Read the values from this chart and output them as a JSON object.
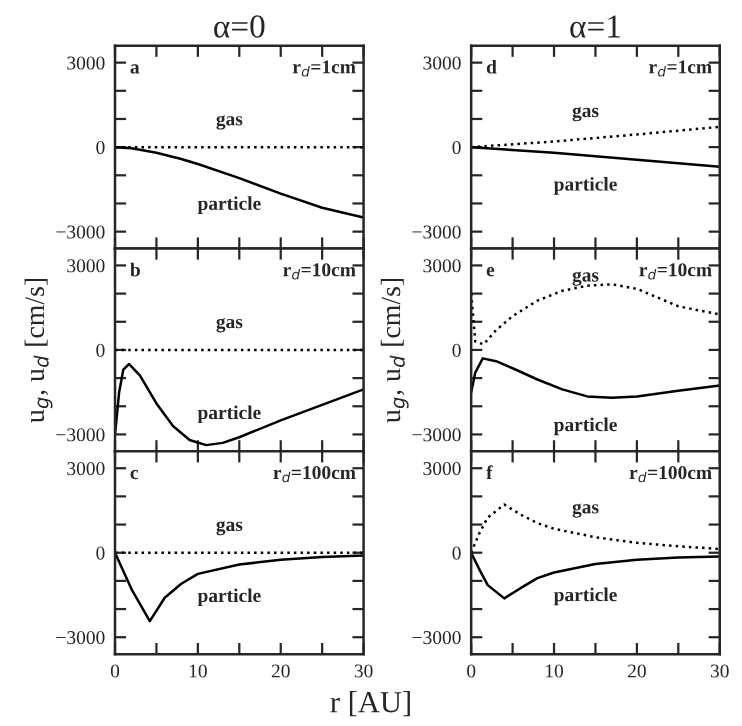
{
  "chart_data": [
    {
      "type": "line",
      "title": "α=0",
      "xlim": [
        0,
        30
      ],
      "ylim": [
        -3600,
        3600
      ],
      "tick_labels": "y",
      "xticks": [
        0,
        {
          "value": 5,
          "label": null
        },
        10,
        {
          "value": 15,
          "label": null
        },
        20,
        {
          "value": 25,
          "label": null
        },
        30
      ],
      "yticks": [
        {
          "value": -3000,
          "label": "−3000"
        },
        {
          "value": -2000,
          "label": null
        },
        {
          "value": -1000,
          "label": null
        },
        0,
        {
          "value": 1000,
          "label": null
        },
        {
          "value": 2000,
          "label": null
        },
        3000
      ],
      "annotations": [
        "a",
        "r$_{d}$=1cm",
        "gas",
        "particle"
      ],
      "series": [
        {
          "color": "#000000",
          "line_style": "dotted",
          "x": [
            0,
            30
          ],
          "values": [
            0,
            0
          ]
        },
        {
          "color": "#000000",
          "line_style": "solid",
          "x": [
            0,
            2,
            5,
            8,
            10,
            15,
            20,
            25,
            30
          ],
          "values": [
            0,
            -40,
            -200,
            -420,
            -600,
            -1100,
            -1650,
            -2150,
            -2500
          ]
        }
      ]
    },
    {
      "type": "line",
      "title": "α=1",
      "xlim": [
        0,
        30
      ],
      "ylim": [
        -3600,
        3600
      ],
      "tick_labels": "y",
      "xticks": [
        0,
        {
          "value": 5,
          "label": null
        },
        10,
        {
          "value": 15,
          "label": null
        },
        20,
        {
          "value": 25,
          "label": null
        },
        30
      ],
      "yticks": [
        {
          "value": -3000,
          "label": "−3000"
        },
        {
          "value": -2000,
          "label": null
        },
        {
          "value": -1000,
          "label": null
        },
        0,
        {
          "value": 1000,
          "label": null
        },
        {
          "value": 2000,
          "label": null
        },
        3000
      ],
      "annotations": [
        "d",
        "r$_{d}$=1cm",
        "gas",
        "particle"
      ],
      "series": [
        {
          "color": "#000000",
          "line_style": "dotted",
          "x": [
            0,
            10,
            20,
            30
          ],
          "values": [
            0,
            200,
            450,
            720
          ]
        },
        {
          "color": "#000000",
          "line_style": "solid",
          "x": [
            0,
            10,
            20,
            30
          ],
          "values": [
            0,
            -200,
            -450,
            -700
          ]
        }
      ]
    },
    {
      "type": "line",
      "ylabel": "u$_{g}$, u$_{d}$ [cm/s]",
      "xlim": [
        0,
        30
      ],
      "ylim": [
        -3600,
        3600
      ],
      "tick_labels": "y",
      "xticks": [
        0,
        {
          "value": 5,
          "label": null
        },
        10,
        {
          "value": 15,
          "label": null
        },
        20,
        {
          "value": 25,
          "label": null
        },
        30
      ],
      "yticks": [
        {
          "value": -3000,
          "label": "−3000"
        },
        {
          "value": -2000,
          "label": null
        },
        {
          "value": -1000,
          "label": null
        },
        0,
        {
          "value": 1000,
          "label": null
        },
        {
          "value": 2000,
          "label": null
        },
        3000
      ],
      "annotations": [
        "b",
        "r$_{d}$=10cm",
        "gas",
        "particle"
      ],
      "series": [
        {
          "color": "#000000",
          "line_style": "dotted",
          "x": [
            0,
            30
          ],
          "values": [
            0,
            0
          ]
        },
        {
          "color": "#000000",
          "line_style": "solid",
          "x": [
            0,
            0.5,
            1,
            1.7,
            3,
            5,
            7,
            9,
            11,
            13,
            15,
            20,
            25,
            30
          ],
          "values": [
            -3000,
            -1500,
            -700,
            -500,
            -900,
            -1900,
            -2700,
            -3200,
            -3380,
            -3300,
            -3100,
            -2500,
            -1950,
            -1400
          ]
        }
      ]
    },
    {
      "type": "line",
      "ylabel": "u$_{g}$, u$_{d}$ [cm/s]",
      "xlim": [
        0,
        30
      ],
      "ylim": [
        -3600,
        3600
      ],
      "tick_labels": "y",
      "xticks": [
        0,
        {
          "value": 5,
          "label": null
        },
        10,
        {
          "value": 15,
          "label": null
        },
        20,
        {
          "value": 25,
          "label": null
        },
        30
      ],
      "yticks": [
        {
          "value": -3000,
          "label": "−3000"
        },
        {
          "value": -2000,
          "label": null
        },
        {
          "value": -1000,
          "label": null
        },
        0,
        {
          "value": 1000,
          "label": null
        },
        {
          "value": 2000,
          "label": null
        },
        3000
      ],
      "annotations": [
        "e",
        "r$_{d}$=10cm",
        "gas",
        "particle"
      ],
      "series": [
        {
          "color": "#000000",
          "line_style": "dotted",
          "x": [
            0,
            0.5,
            1.5,
            3,
            5,
            8,
            11,
            14,
            17,
            20,
            25,
            30
          ],
          "values": [
            2000,
            300,
            200,
            700,
            1200,
            1750,
            2100,
            2280,
            2330,
            2170,
            1550,
            1260
          ]
        },
        {
          "color": "#000000",
          "line_style": "solid",
          "x": [
            0,
            0.5,
            1.4,
            3,
            5,
            8,
            11,
            14,
            17,
            20,
            25,
            30
          ],
          "values": [
            -1500,
            -800,
            -300,
            -400,
            -650,
            -1050,
            -1400,
            -1650,
            -1700,
            -1650,
            -1450,
            -1260
          ]
        }
      ]
    },
    {
      "type": "line",
      "xlabel": "r [AU]",
      "xlim": [
        0,
        30
      ],
      "ylim": [
        -3600,
        3600
      ],
      "xticks": [
        0,
        {
          "value": 5,
          "label": null
        },
        10,
        {
          "value": 15,
          "label": null
        },
        20,
        {
          "value": 25,
          "label": null
        },
        30
      ],
      "yticks": [
        {
          "value": -3000,
          "label": "−3000"
        },
        {
          "value": -2000,
          "label": null
        },
        {
          "value": -1000,
          "label": null
        },
        0,
        {
          "value": 1000,
          "label": null
        },
        {
          "value": 2000,
          "label": null
        },
        3000
      ],
      "annotations": [
        "c",
        "r$_{d}$=100cm",
        "gas",
        "particle"
      ],
      "series": [
        {
          "color": "#000000",
          "line_style": "dotted",
          "x": [
            0,
            30
          ],
          "values": [
            0,
            0
          ]
        },
        {
          "color": "#000000",
          "line_style": "solid",
          "x": [
            0,
            2,
            4.2,
            6,
            8,
            10,
            15,
            20,
            25,
            30
          ],
          "values": [
            0,
            -1300,
            -2430,
            -1600,
            -1100,
            -750,
            -420,
            -250,
            -150,
            -100
          ]
        }
      ]
    },
    {
      "type": "line",
      "xlim": [
        0,
        30
      ],
      "ylim": [
        -3600,
        3600
      ],
      "xticks": [
        0,
        {
          "value": 5,
          "label": null
        },
        10,
        {
          "value": 15,
          "label": null
        },
        20,
        {
          "value": 25,
          "label": null
        },
        30
      ],
      "yticks": [
        {
          "value": -3000,
          "label": "−3000"
        },
        {
          "value": -2000,
          "label": null
        },
        {
          "value": -1000,
          "label": null
        },
        0,
        {
          "value": 1000,
          "label": null
        },
        {
          "value": 2000,
          "label": null
        },
        3000
      ],
      "annotations": [
        "f",
        "r$_{d}$=100cm",
        "gas",
        "particle"
      ],
      "series": [
        {
          "color": "#000000",
          "line_style": "dotted",
          "x": [
            0,
            1,
            2,
            4,
            6,
            8,
            10,
            15,
            20,
            25,
            30
          ],
          "values": [
            0,
            700,
            1250,
            1710,
            1350,
            1050,
            850,
            550,
            350,
            230,
            130
          ]
        },
        {
          "color": "#000000",
          "line_style": "solid",
          "x": [
            0,
            1,
            2,
            4,
            6,
            8,
            10,
            15,
            20,
            25,
            30
          ],
          "values": [
            0,
            -600,
            -1150,
            -1620,
            -1250,
            -900,
            -700,
            -400,
            -250,
            -170,
            -130
          ]
        }
      ]
    }
  ]
}
